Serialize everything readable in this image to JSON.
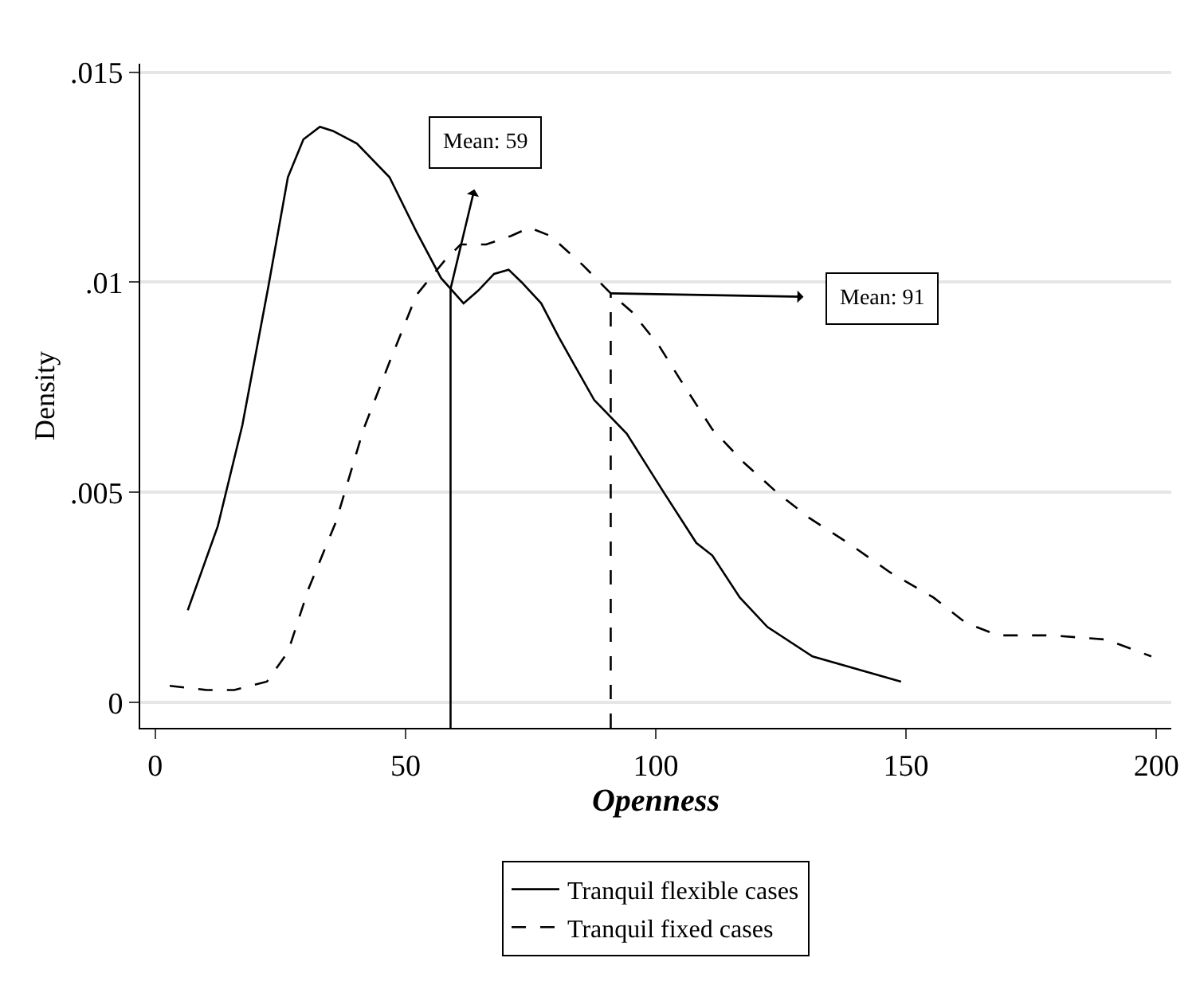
{
  "chart_data": {
    "type": "line",
    "xlabel": "Openness",
    "ylabel": "Density",
    "xlim": [
      -3,
      203
    ],
    "ylim": [
      -0.0006,
      0.0152
    ],
    "xticks": [
      0,
      50,
      100,
      150,
      200
    ],
    "yticks": [
      {
        "value": 0,
        "label": "0"
      },
      {
        "value": 0.005,
        "label": ".005"
      },
      {
        "value": 0.01,
        "label": ".01"
      },
      {
        "value": 0.015,
        "label": ".015"
      }
    ],
    "grid": "y",
    "legend": "bottom",
    "marker": "none",
    "series": [
      {
        "name": "Tranquil flexible cases",
        "color": "#000000",
        "line_style": "solid",
        "x": [
          6.5,
          12.5,
          17.4,
          22.6,
          26.5,
          29.6,
          32.9,
          35.5,
          40.3,
          46.8,
          52.2,
          57.1,
          61.6,
          64.5,
          67.7,
          70.6,
          73.2,
          77.1,
          80.6,
          83.9,
          87.7,
          94.2,
          101.6,
          108.1,
          111.3,
          116.8,
          122.3,
          131.3,
          149
        ],
        "values": [
          0.0022,
          0.0042,
          0.0066,
          0.0099,
          0.0125,
          0.0134,
          0.0137,
          0.0136,
          0.0133,
          0.0125,
          0.0112,
          0.0101,
          0.0095,
          0.0098,
          0.0102,
          0.0103,
          0.01,
          0.0095,
          0.0087,
          0.008,
          0.0072,
          0.0064,
          0.005,
          0.0038,
          0.0035,
          0.0025,
          0.0018,
          0.0011,
          0.0005
        ]
      },
      {
        "name": "Tranquil fixed cases",
        "color": "#000000",
        "line_style": "dashed",
        "x": [
          2.9,
          10.3,
          15.8,
          22.3,
          26.5,
          30.6,
          36.1,
          41.6,
          46.8,
          52.2,
          57.7,
          61,
          66.1,
          71,
          74.8,
          79,
          85.5,
          91.3,
          95.2,
          100.6,
          104.8,
          111.3,
          117.7,
          124.2,
          130.6,
          138.4,
          146.8,
          155.5,
          161.9,
          168.4,
          179,
          190,
          199
        ],
        "values": [
          0.0004,
          0.0003,
          0.0003,
          0.0005,
          0.0012,
          0.0027,
          0.0043,
          0.0065,
          0.0081,
          0.0097,
          0.0105,
          0.0109,
          0.0109,
          0.0111,
          0.0113,
          0.0111,
          0.0104,
          0.0097,
          0.0093,
          0.0085,
          0.0077,
          0.0065,
          0.0057,
          0.005,
          0.0044,
          0.0038,
          0.0031,
          0.0025,
          0.0019,
          0.0016,
          0.0016,
          0.0015,
          0.0011
        ]
      }
    ],
    "ref_lines": [
      {
        "axis": "x",
        "value": 59,
        "label": "Mean: 59",
        "color": "#000000",
        "line_style": "solid"
      },
      {
        "axis": "x",
        "value": 91,
        "label": "Mean: 91",
        "color": "#000000",
        "line_style": "dashed"
      }
    ]
  }
}
